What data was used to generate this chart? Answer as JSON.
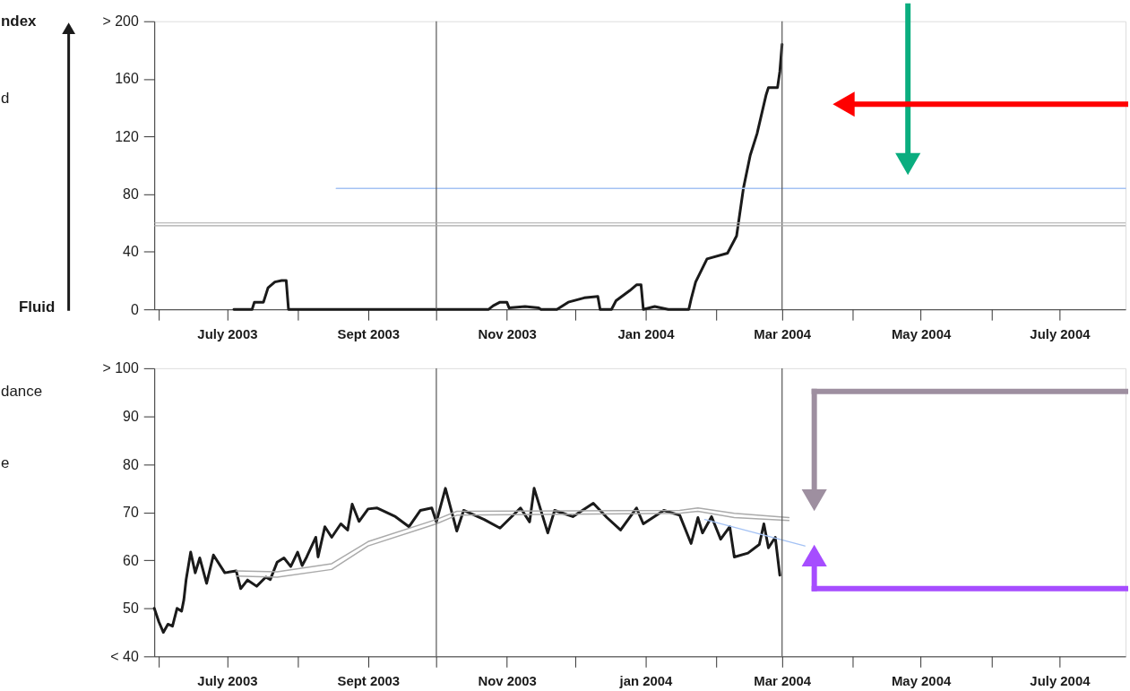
{
  "chart_data": [
    {
      "type": "line",
      "annotations": [
        "ndex",
        "d",
        "Fluid"
      ],
      "xlim": [
        "2003-05-30",
        "2004-07-30"
      ],
      "xticks": [
        {
          "value": "2003-06-01",
          "label": null
        },
        {
          "value": "2003-07-01",
          "label": "July 2003"
        },
        {
          "value": "2003-08-01",
          "label": null
        },
        {
          "value": "2003-09-01",
          "label": "Sept 2003"
        },
        {
          "value": "2003-10-01",
          "label": null
        },
        {
          "value": "2003-11-01",
          "label": "Nov 2003"
        },
        {
          "value": "2003-12-01",
          "label": null
        },
        {
          "value": "2004-01-01",
          "label": "Jan 2004"
        },
        {
          "value": "2004-02-01",
          "label": null
        },
        {
          "value": "2004-03-01",
          "label": "Mar 2004"
        },
        {
          "value": "2004-04-01",
          "label": null
        },
        {
          "value": "2004-05-01",
          "label": "May 2004"
        },
        {
          "value": "2004-06-01",
          "label": null
        },
        {
          "value": "2004-07-01",
          "label": "July 2004"
        }
      ],
      "ylim": [
        0,
        200
      ],
      "yticks": [
        0,
        40,
        80,
        120,
        160,
        {
          "value": 200,
          "label": "> 200"
        }
      ],
      "ref_lines": [
        {
          "axis": "x",
          "value": "2003-10-01",
          "color": "#555555"
        },
        {
          "axis": "x",
          "value": "2004-03-01",
          "color": "#555555"
        },
        {
          "axis": "y",
          "value": 58,
          "color": "#aaaaaa"
        },
        {
          "axis": "y",
          "value": 60,
          "color": "#aaaaaa"
        }
      ],
      "series": [
        {
          "color": "#1a1a1a",
          "x": [
            "2003-07-04",
            "2003-07-12",
            "2003-07-13",
            "2003-07-17",
            "2003-07-19",
            "2003-07-22",
            "2003-07-25",
            "2003-07-27",
            "2003-07-28",
            "2003-10-24",
            "2003-10-26",
            "2003-10-29",
            "2003-11-01",
            "2003-11-02",
            "2003-11-09",
            "2003-11-15",
            "2003-11-16",
            "2003-11-23",
            "2003-11-28",
            "2003-12-05",
            "2003-12-11",
            "2003-12-12",
            "2003-12-17",
            "2003-12-19",
            "2003-12-25",
            "2003-12-28",
            "2003-12-30",
            "2003-12-31",
            "2004-01-05",
            "2004-01-11",
            "2004-01-20",
            "2004-01-21",
            "2004-01-23",
            "2004-01-28",
            "2004-02-06",
            "2004-02-10",
            "2004-02-13",
            "2004-02-16",
            "2004-02-19",
            "2004-02-23",
            "2004-02-24",
            "2004-02-28",
            "2004-02-29",
            "2004-03-01"
          ],
          "values": [
            0,
            0,
            5,
            5,
            15,
            19,
            20,
            20,
            0,
            0,
            2.5,
            5,
            5,
            1,
            2,
            1,
            0,
            0,
            5,
            8,
            9,
            0,
            0,
            6,
            13,
            17,
            17,
            0,
            2,
            0,
            0,
            7,
            19,
            35,
            39,
            51,
            84,
            107,
            122,
            149,
            154,
            154,
            165,
            184
          ]
        },
        {
          "color": "#a4c2f4",
          "x": [
            "2003-08-18",
            "2004-07-30"
          ],
          "values": [
            84,
            84
          ]
        }
      ]
    },
    {
      "type": "line",
      "annotations": [
        "dance",
        "e"
      ],
      "xlim": [
        "2003-05-30",
        "2004-07-30"
      ],
      "xticks": [
        {
          "value": "2003-06-01",
          "label": null
        },
        {
          "value": "2003-07-01",
          "label": "July 2003"
        },
        {
          "value": "2003-08-01",
          "label": null
        },
        {
          "value": "2003-09-01",
          "label": "Sept 2003"
        },
        {
          "value": "2003-10-01",
          "label": null
        },
        {
          "value": "2003-11-01",
          "label": "Nov 2003"
        },
        {
          "value": "2003-12-01",
          "label": null
        },
        {
          "value": "2004-01-01",
          "label": "jan 2004"
        },
        {
          "value": "2004-02-01",
          "label": null
        },
        {
          "value": "2004-03-01",
          "label": "Mar 2004"
        },
        {
          "value": "2004-04-01",
          "label": null
        },
        {
          "value": "2004-05-01",
          "label": "May 2004"
        },
        {
          "value": "2004-06-01",
          "label": null
        },
        {
          "value": "2004-07-01",
          "label": "July 2004"
        }
      ],
      "ylim": [
        40,
        100
      ],
      "yticks": [
        {
          "value": 40,
          "label": "< 40"
        },
        50,
        60,
        70,
        80,
        90,
        {
          "value": 100,
          "label": "> 100"
        }
      ],
      "ref_lines": [
        {
          "axis": "x",
          "value": "2003-10-01",
          "color": "#555555"
        },
        {
          "axis": "x",
          "value": "2004-03-01",
          "color": "#555555"
        }
      ],
      "series": [
        {
          "color": "#1a1a1a",
          "x": [
            "2003-05-30",
            "2003-06-01",
            "2003-06-03",
            "2003-06-05",
            "2003-06-07",
            "2003-06-09",
            "2003-06-11",
            "2003-06-12",
            "2003-06-13",
            "2003-06-15",
            "2003-06-17",
            "2003-06-19",
            "2003-06-22",
            "2003-06-25",
            "2003-06-30",
            "2003-07-05",
            "2003-07-07",
            "2003-07-10",
            "2003-07-14",
            "2003-07-18",
            "2003-07-20",
            "2003-07-23",
            "2003-07-26",
            "2003-07-29",
            "2003-08-01",
            "2003-08-03",
            "2003-08-05",
            "2003-08-09",
            "2003-08-10",
            "2003-08-13",
            "2003-08-16",
            "2003-08-20",
            "2003-08-23",
            "2003-08-25",
            "2003-08-28",
            "2003-09-01",
            "2003-09-05",
            "2003-09-13",
            "2003-09-19",
            "2003-09-24",
            "2003-09-29",
            "2003-10-01",
            "2003-10-05",
            "2003-10-10",
            "2003-10-13",
            "2003-10-22",
            "2003-10-29",
            "2003-11-07",
            "2003-11-11",
            "2003-11-13",
            "2003-11-19",
            "2003-11-22",
            "2003-11-30",
            "2003-12-09",
            "2003-12-15",
            "2003-12-21",
            "2003-12-28",
            "2003-12-31",
            "2004-01-09",
            "2004-01-16",
            "2004-01-21",
            "2004-01-24",
            "2004-01-26",
            "2004-01-30",
            "2004-02-03",
            "2004-02-07",
            "2004-02-09",
            "2004-02-15",
            "2004-02-20",
            "2004-02-22",
            "2004-02-24",
            "2004-02-27",
            "2004-02-29"
          ],
          "values": [
            50,
            47.2,
            45,
            46.7,
            46.3,
            50,
            49.4,
            51.8,
            56,
            61.7,
            57.4,
            60.5,
            55.2,
            61.1,
            57.4,
            57.8,
            54.1,
            55.9,
            54.6,
            56.5,
            56,
            59.6,
            60.5,
            58.7,
            61.7,
            58.9,
            60.7,
            64.8,
            60.7,
            67,
            64.8,
            67.6,
            66.3,
            71.7,
            68.1,
            70.7,
            70.9,
            69.1,
            67,
            70.4,
            70.9,
            68,
            75,
            66.1,
            70.4,
            68.5,
            66.7,
            70.9,
            68,
            75,
            65.7,
            70.4,
            69.1,
            71.9,
            68.9,
            66.3,
            70.9,
            67.6,
            70.4,
            69.4,
            63.5,
            68.9,
            65.7,
            69.1,
            64.4,
            67,
            60.7,
            61.5,
            63.3,
            67.6,
            62.6,
            64.8,
            56.9
          ]
        },
        {
          "color": "#aaaaaa",
          "x": [
            "2003-07-05",
            "2003-07-23",
            "2003-08-16",
            "2003-09-01",
            "2003-10-01",
            "2003-10-10",
            "2004-01-16",
            "2004-01-24",
            "2004-02-09",
            "2004-03-04"
          ],
          "values": [
            57.8,
            57.6,
            59.3,
            63.9,
            68.5,
            70.2,
            70.4,
            70.9,
            69.8,
            68.9
          ]
        },
        {
          "color": "#aaaaaa",
          "x": [
            "2003-07-05",
            "2003-07-23",
            "2003-08-16",
            "2003-09-01",
            "2003-10-01",
            "2003-10-10",
            "2004-01-16",
            "2004-01-24",
            "2004-02-09",
            "2004-03-04"
          ],
          "values": [
            56.7,
            56.5,
            58.1,
            63.0,
            67.6,
            69.4,
            69.8,
            70.2,
            68.9,
            68.3
          ]
        },
        {
          "color": "#a4c2f4",
          "x": [
            "2004-01-27",
            "2004-03-11"
          ],
          "values": [
            68.5,
            63
          ]
        }
      ]
    }
  ]
}
